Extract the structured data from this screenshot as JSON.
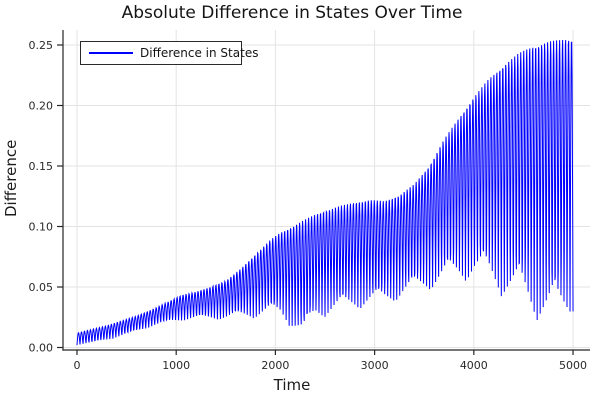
{
  "chart_data": {
    "type": "line",
    "title": "Absolute Difference in States Over Time",
    "xlabel": "Time",
    "ylabel": "Difference",
    "grid": true,
    "legend_position": "top-left",
    "background_color": "#ffffff",
    "grid_color": "#e3e3e3",
    "axis_color": "#262626",
    "series": [
      {
        "name": "Difference in States",
        "color": "#0000ff",
        "description": "rapid oscillation of |state difference| between a lower and upper envelope, ~166 oscillation peaks from t=0 to t=5000"
      }
    ],
    "xlim": [
      -141,
      5171
    ],
    "ylim": [
      -0.00206,
      0.2624
    ],
    "xticks": {
      "values": [
        0,
        1000,
        2000,
        3000,
        4000,
        5000
      ],
      "labels": [
        "0",
        "1000",
        "2000",
        "3000",
        "4000",
        "5000"
      ]
    },
    "yticks": {
      "values": [
        0.0,
        0.05,
        0.1,
        0.15,
        0.2,
        0.25
      ],
      "labels": [
        "0.00",
        "0.05",
        "0.10",
        "0.15",
        "0.20",
        "0.25"
      ]
    },
    "oscillation": {
      "shape": "abs-sine",
      "period": 30.12,
      "samples": 1480
    },
    "envelope": {
      "t": [
        0,
        150,
        300,
        450,
        600,
        750,
        900,
        1050,
        1200,
        1350,
        1500,
        1650,
        1800,
        1950,
        2050,
        2150,
        2280,
        2400,
        2500,
        2650,
        2800,
        2950,
        3100,
        3250,
        3400,
        3550,
        3700,
        3850,
        4000,
        4150,
        4300,
        4450,
        4600,
        4750,
        4850,
        4925,
        5000
      ],
      "lower": [
        0.002,
        0.003,
        0.006,
        0.009,
        0.013,
        0.017,
        0.02,
        0.022,
        0.023,
        0.023,
        0.023,
        0.024,
        0.024,
        0.026,
        0.025,
        0.017,
        0.006,
        0.023,
        0.025,
        0.028,
        0.031,
        0.033,
        0.035,
        0.039,
        0.044,
        0.047,
        0.051,
        0.054,
        0.055,
        0.049,
        0.041,
        0.033,
        0.024,
        0.016,
        0.015,
        0.02,
        0.028
      ],
      "upper": [
        0.012,
        0.015,
        0.018,
        0.022,
        0.026,
        0.031,
        0.037,
        0.043,
        0.046,
        0.05,
        0.055,
        0.065,
        0.077,
        0.089,
        0.095,
        0.099,
        0.105,
        0.11,
        0.113,
        0.117,
        0.12,
        0.122,
        0.121,
        0.126,
        0.135,
        0.15,
        0.172,
        0.19,
        0.207,
        0.222,
        0.234,
        0.243,
        0.25,
        0.253,
        0.254,
        0.2555,
        0.256
      ]
    }
  }
}
